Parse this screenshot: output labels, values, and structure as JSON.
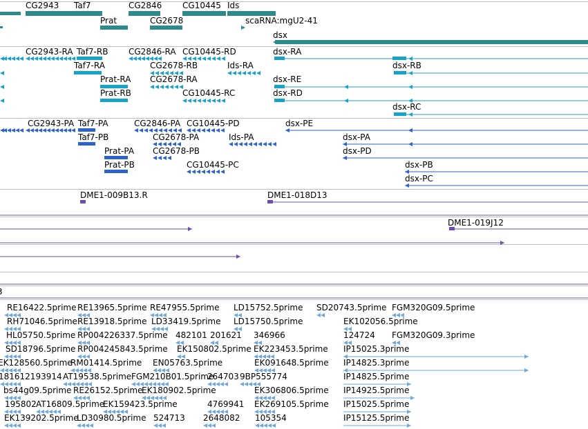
{
  "tracks": {
    "genes": {
      "labels": [
        "CG2943",
        "Taf7",
        "CG2846",
        "CG10445",
        "Ids",
        "Prat",
        "CG2678",
        "scaRNA:mgU2-41",
        "dsx"
      ],
      "color": "#2e8b8b"
    },
    "transcripts": {
      "labels": [
        "CG2943-RA",
        "Taf7-RB",
        "CG2846-RA",
        "CG10445-RD",
        "dsx-RA",
        "Taf7-RA",
        "CG2678-RB",
        "Ids-RA",
        "dsx-RB",
        "Prat-RA",
        "CG2678-RA",
        "dsx-RE",
        "Prat-RB",
        "CG10445-RC",
        "dsx-RD",
        "dsx-RC"
      ],
      "color": "#17a2c9"
    },
    "proteins": {
      "labels": [
        "CG2943-PA",
        "Taf7-PA",
        "CG2846-PA",
        "CG10445-PD",
        "dsx-PE",
        "Taf7-PB",
        "CG2678-PA",
        "Ids-PA",
        "dsx-PA",
        "Prat-PA",
        "CG2678-PB",
        "dsx-PD",
        "Prat-PB",
        "CG10445-PC",
        "dsx-PB",
        "dsx-PC"
      ],
      "color": "#2a63cc"
    },
    "clones": {
      "labels": [
        "DME1-009B13.R",
        "DME1-018D13",
        "DME1-019J12"
      ],
      "color": "#6b4fb0",
      "edge_label": "3"
    },
    "ests": {
      "labels": [
        "RE16422.5prime",
        "RE13965.5prime",
        "RE47955.5prime",
        "LD15752.5prime",
        "SD20743.5prime",
        "FGM320G09.5prime",
        "RH71046.5prime",
        "RE13918.5prime",
        "LD33419.5prime",
        "LD15750.5prime",
        "EK102056.5prime",
        "HL05750.5prime",
        "RP004226337.5prime",
        "482101",
        "201621",
        "346966",
        "124724",
        "FGM320G09.3prime",
        "SD18796.5prime",
        "RP004245843.5prime",
        "EK150802.5prime",
        "EK223453.5prime",
        "IP15025.3prime",
        "EK128560.5prime",
        "RM01414.5prime",
        "EN05763.5prime",
        "EK091648.5prime",
        "IP14825.3prime",
        "181612193914",
        "AT19538.5prime",
        "FGM210B01.5prime",
        "264703",
        "9BP555774",
        "IP14825.5prime",
        "bs44g09.5prime",
        "RE26152.5prime",
        "EK180902.5prime",
        "EK306806.5prime",
        "IP14925.5prime",
        "195802",
        "AT16809.5prime",
        "EK159423.5prime",
        "4769941",
        "EK269105.5prime",
        "IP15025.5prime",
        "EK139202.5prime",
        "LD30980.5prime",
        "524713",
        "2648082",
        "105354",
        "IP15125.5prime"
      ],
      "color": "#6fa8dc"
    }
  }
}
